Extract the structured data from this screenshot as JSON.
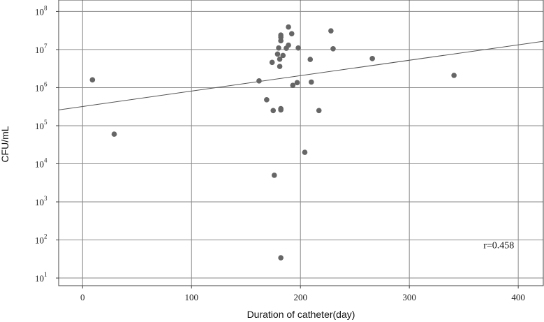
{
  "chart_data": {
    "type": "scatter",
    "xlabel": "Duration of catheter(day)",
    "ylabel": "CFU/mL",
    "xlim": [
      -22,
      423
    ],
    "xticks": [
      0,
      100,
      200,
      300,
      400
    ],
    "y_scale": "log",
    "ylim": [
      6.3,
      200000000
    ],
    "yticks": [
      {
        "value": 10,
        "base": "10",
        "exp": "1"
      },
      {
        "value": 100,
        "base": "10",
        "exp": "2"
      },
      {
        "value": 1000,
        "base": "10",
        "exp": "3"
      },
      {
        "value": 10000,
        "base": "10",
        "exp": "4"
      },
      {
        "value": 100000,
        "base": "10",
        "exp": "5"
      },
      {
        "value": 1000000,
        "base": "10",
        "exp": "6"
      },
      {
        "value": 10000000,
        "base": "10",
        "exp": "7"
      },
      {
        "value": 100000000,
        "base": "10",
        "exp": "8"
      }
    ],
    "grid": true,
    "marker_color": "#666666",
    "fit_line_color": "#555555",
    "points": [
      {
        "x": 9,
        "y": 1600000
      },
      {
        "x": 29,
        "y": 60000
      },
      {
        "x": 162,
        "y": 1500000
      },
      {
        "x": 169,
        "y": 480000
      },
      {
        "x": 174,
        "y": 4600000
      },
      {
        "x": 175,
        "y": 250000
      },
      {
        "x": 176,
        "y": 5000
      },
      {
        "x": 179,
        "y": 7600000
      },
      {
        "x": 180,
        "y": 11000000
      },
      {
        "x": 181,
        "y": 3600000
      },
      {
        "x": 181,
        "y": 5600000
      },
      {
        "x": 182,
        "y": 17000000
      },
      {
        "x": 182,
        "y": 21000000
      },
      {
        "x": 182,
        "y": 24000000
      },
      {
        "x": 182,
        "y": 280000
      },
      {
        "x": 182,
        "y": 260000
      },
      {
        "x": 182,
        "y": 34
      },
      {
        "x": 184,
        "y": 7000000
      },
      {
        "x": 187,
        "y": 10800000
      },
      {
        "x": 189,
        "y": 13000000
      },
      {
        "x": 189,
        "y": 39000000
      },
      {
        "x": 192,
        "y": 26000000
      },
      {
        "x": 193,
        "y": 1150000
      },
      {
        "x": 197,
        "y": 1350000
      },
      {
        "x": 198,
        "y": 11000000
      },
      {
        "x": 204,
        "y": 20000
      },
      {
        "x": 209,
        "y": 5500000
      },
      {
        "x": 210,
        "y": 1400000
      },
      {
        "x": 217,
        "y": 250000
      },
      {
        "x": 228,
        "y": 31000000
      },
      {
        "x": 230,
        "y": 10500000
      },
      {
        "x": 266,
        "y": 5800000
      },
      {
        "x": 341,
        "y": 2100000
      }
    ],
    "fit_line": [
      {
        "x": -22,
        "y": 260000
      },
      {
        "x": 423,
        "y": 16500000
      }
    ],
    "annotations": [
      {
        "text": "r=0.458",
        "x": 368,
        "y": 75
      }
    ]
  }
}
